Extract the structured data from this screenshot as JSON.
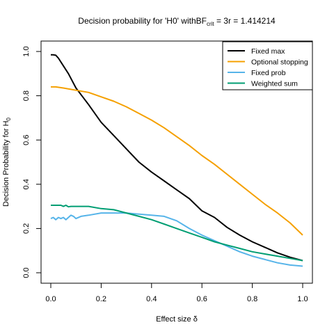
{
  "chart_data": {
    "type": "line",
    "title_parts": {
      "prefix": "Decision probability for 'H0' withBF",
      "subscript": "crit",
      "suffix": " = 3r = 1.414214"
    },
    "xlabel": "Effect size δ",
    "ylabel_parts": {
      "prefix": "Decision Probability for H",
      "subscript": "0"
    },
    "xlim": [
      0,
      1
    ],
    "ylim": [
      0,
      1
    ],
    "xticks": [
      0,
      0.2,
      0.4,
      0.6,
      0.8,
      1
    ],
    "xtick_labels": [
      "0.0",
      "0.2",
      "0.4",
      "0.6",
      "0.8",
      "1.0"
    ],
    "yticks": [
      0,
      0.2,
      0.4,
      0.6,
      0.8,
      1
    ],
    "ytick_labels": [
      "0.0",
      "0.2",
      "0.4",
      "0.6",
      "0.8",
      "1.0"
    ],
    "grid": false,
    "legend_position": "top-right",
    "series": [
      {
        "name": "Fixed max",
        "color": "#000000",
        "x": [
          0,
          0.01,
          0.02,
          0.03,
          0.05,
          0.07,
          0.1,
          0.15,
          0.2,
          0.25,
          0.3,
          0.35,
          0.4,
          0.45,
          0.5,
          0.55,
          0.6,
          0.65,
          0.7,
          0.75,
          0.8,
          0.85,
          0.9,
          0.95,
          1.0
        ],
        "y": [
          0.985,
          0.985,
          0.983,
          0.97,
          0.935,
          0.9,
          0.835,
          0.76,
          0.68,
          0.62,
          0.56,
          0.5,
          0.455,
          0.415,
          0.375,
          0.335,
          0.28,
          0.25,
          0.205,
          0.17,
          0.14,
          0.115,
          0.09,
          0.07,
          0.055
        ]
      },
      {
        "name": "Optional stopping",
        "color": "#f5a000",
        "x": [
          0,
          0.02,
          0.05,
          0.1,
          0.15,
          0.2,
          0.25,
          0.3,
          0.35,
          0.4,
          0.45,
          0.5,
          0.55,
          0.6,
          0.65,
          0.7,
          0.75,
          0.8,
          0.85,
          0.9,
          0.95,
          1.0
        ],
        "y": [
          0.84,
          0.84,
          0.835,
          0.825,
          0.815,
          0.795,
          0.775,
          0.75,
          0.72,
          0.69,
          0.655,
          0.615,
          0.575,
          0.53,
          0.49,
          0.445,
          0.4,
          0.355,
          0.31,
          0.27,
          0.225,
          0.17
        ]
      },
      {
        "name": "Fixed prob",
        "color": "#56b4e9",
        "x": [
          0,
          0.01,
          0.02,
          0.03,
          0.04,
          0.05,
          0.06,
          0.07,
          0.08,
          0.09,
          0.1,
          0.12,
          0.15,
          0.2,
          0.25,
          0.3,
          0.35,
          0.4,
          0.45,
          0.5,
          0.55,
          0.6,
          0.65,
          0.7,
          0.75,
          0.8,
          0.85,
          0.9,
          0.95,
          1.0
        ],
        "y": [
          0.245,
          0.25,
          0.24,
          0.25,
          0.245,
          0.25,
          0.24,
          0.25,
          0.26,
          0.255,
          0.245,
          0.255,
          0.26,
          0.27,
          0.27,
          0.27,
          0.265,
          0.26,
          0.255,
          0.235,
          0.2,
          0.17,
          0.145,
          0.12,
          0.095,
          0.075,
          0.06,
          0.045,
          0.035,
          0.03
        ]
      },
      {
        "name": "Weighted sum",
        "color": "#009e73",
        "x": [
          0,
          0.02,
          0.04,
          0.05,
          0.06,
          0.07,
          0.08,
          0.1,
          0.15,
          0.2,
          0.25,
          0.3,
          0.35,
          0.4,
          0.45,
          0.5,
          0.55,
          0.6,
          0.65,
          0.7,
          0.75,
          0.8,
          0.85,
          0.9,
          0.95,
          1.0
        ],
        "y": [
          0.305,
          0.305,
          0.305,
          0.3,
          0.305,
          0.298,
          0.3,
          0.3,
          0.3,
          0.29,
          0.285,
          0.27,
          0.255,
          0.24,
          0.22,
          0.2,
          0.18,
          0.16,
          0.14,
          0.125,
          0.11,
          0.095,
          0.085,
          0.075,
          0.065,
          0.055
        ]
      }
    ]
  }
}
